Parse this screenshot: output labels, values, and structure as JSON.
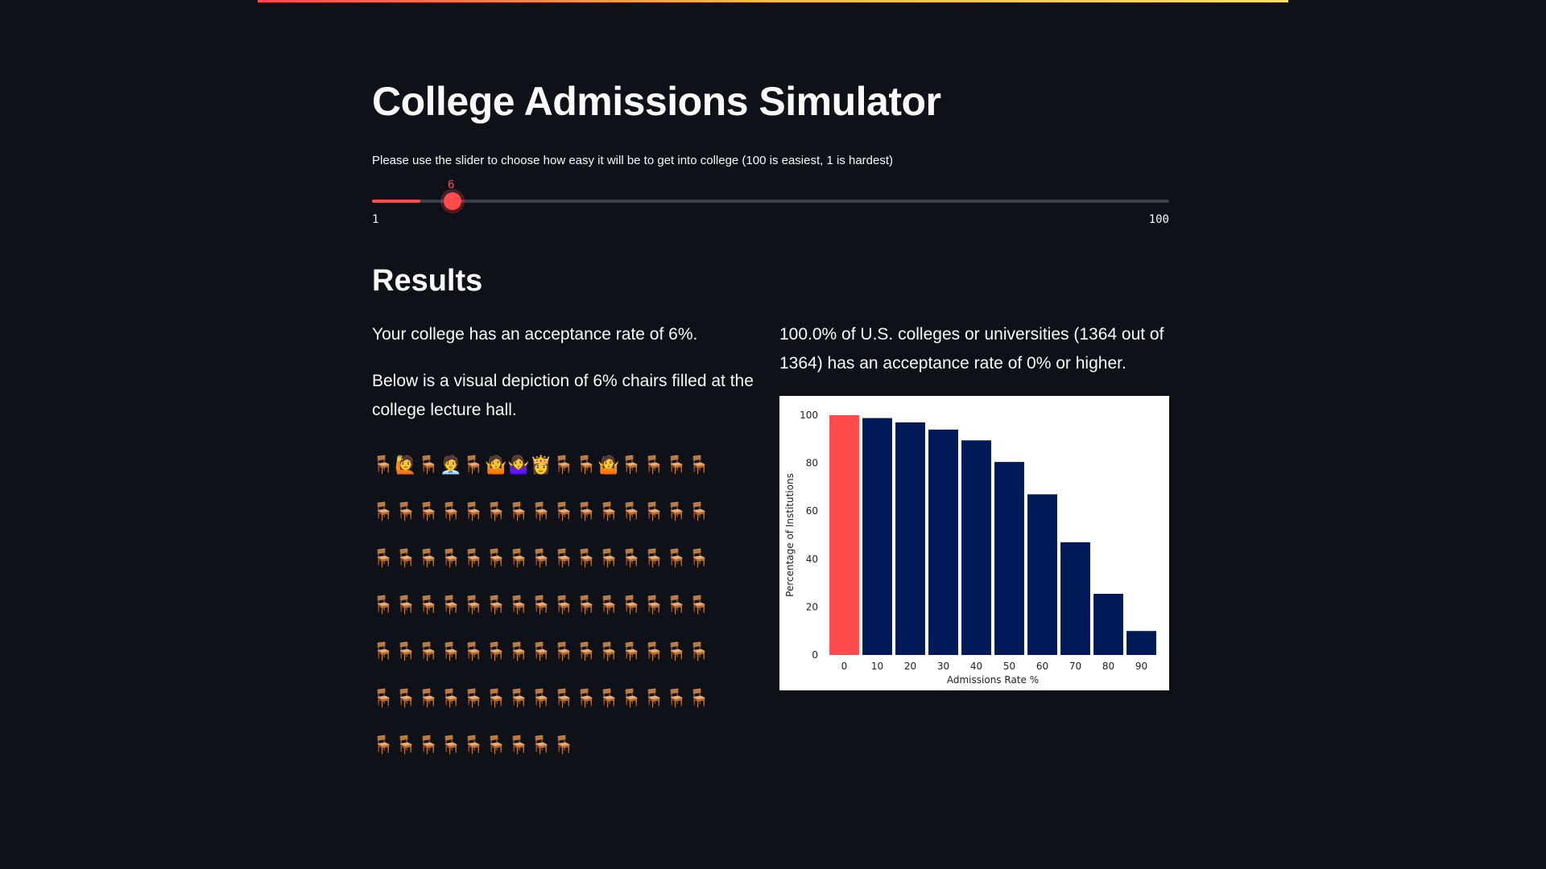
{
  "app": {
    "title": "College Admissions Simulator",
    "accent_color": "#ff4b4b",
    "background_color": "#0e1117"
  },
  "slider": {
    "instruction": "Please use the slider to choose how easy it will be to get into college (100 is easiest, 1 is hardest)",
    "value": "6",
    "min_label": "1",
    "max_label": "100",
    "min": 1,
    "max": 100,
    "current": 6
  },
  "results": {
    "heading": "Results",
    "acceptance_text": "Your college has an acceptance rate of 6%.",
    "visual_text": "Below is a visual depiction of 6% chairs filled at the college lecture hall.",
    "comparison_text": "100.0% of U.S. colleges or universities (1364 out of 1364) has an acceptance rate of 0% or higher."
  },
  "lecture_hall": {
    "rows": [
      [
        "chair",
        "person",
        "chair",
        "person",
        "chair",
        "person",
        "person",
        "person",
        "chair",
        "chair",
        "person",
        "chair",
        "chair",
        "chair",
        "chair"
      ],
      [
        "chair",
        "chair",
        "chair",
        "chair",
        "chair",
        "chair",
        "chair",
        "chair",
        "chair",
        "chair",
        "chair",
        "chair",
        "chair",
        "chair",
        "chair"
      ],
      [
        "chair",
        "chair",
        "chair",
        "chair",
        "chair",
        "chair",
        "chair",
        "chair",
        "chair",
        "chair",
        "chair",
        "chair",
        "chair",
        "chair",
        "chair"
      ],
      [
        "chair",
        "chair",
        "chair",
        "chair",
        "chair",
        "chair",
        "chair",
        "chair",
        "chair",
        "chair",
        "chair",
        "chair",
        "chair",
        "chair",
        "chair"
      ],
      [
        "chair",
        "chair",
        "chair",
        "chair",
        "chair",
        "chair",
        "chair",
        "chair",
        "chair",
        "chair",
        "chair",
        "chair",
        "chair",
        "chair",
        "chair"
      ],
      [
        "chair",
        "chair",
        "chair",
        "chair",
        "chair",
        "chair",
        "chair",
        "chair",
        "chair",
        "chair",
        "chair",
        "chair",
        "chair",
        "chair",
        "chair"
      ],
      [
        "chair",
        "chair",
        "chair",
        "chair",
        "chair",
        "chair",
        "chair",
        "chair",
        "chair"
      ]
    ],
    "people": [
      "🙋",
      "🧑‍💼",
      "🤷",
      "🤷‍♀️",
      "👸",
      "🤷"
    ],
    "chair_glyph": "🪑",
    "chair_color": "#8b5a2b"
  },
  "chart_data": {
    "type": "bar",
    "categories": [
      "0",
      "10",
      "20",
      "30",
      "40",
      "50",
      "60",
      "70",
      "80",
      "90"
    ],
    "values": [
      100,
      98.8,
      97,
      94,
      89.5,
      80.5,
      67,
      47,
      25.5,
      10
    ],
    "highlight_index": 0,
    "highlight_color": "#ff4b4b",
    "bar_color": "#001a57",
    "xlabel": "Admissions Rate %",
    "ylabel": "Percentage of Institutions",
    "ylim": [
      0,
      100
    ],
    "yticks": [
      "0",
      "20",
      "40",
      "60",
      "80",
      "100"
    ],
    "grid": false
  }
}
